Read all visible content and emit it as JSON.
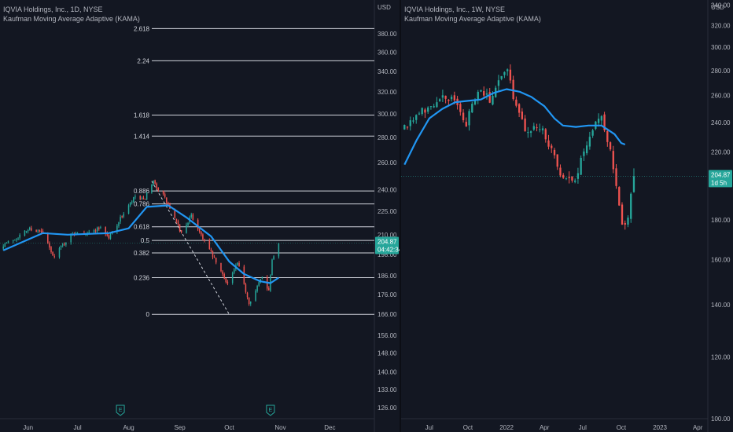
{
  "chart_data": [
    {
      "type": "candlestick",
      "legend": {
        "symbol": "IQVIA Holdings, Inc., 1D, NYSE",
        "indicator": "Kaufman Moving Average Adaptive (KAMA)"
      },
      "currency": "USD",
      "y_scale": "log",
      "ylim": [
        122,
        420
      ],
      "y_ticks": [
        "380.00",
        "360.00",
        "340.00",
        "320.00",
        "300.00",
        "280.00",
        "260.00",
        "240.00",
        "225.00",
        "210.00",
        "198.00",
        "186.00",
        "176.00",
        "166.00",
        "156.00",
        "148.00",
        "140.00",
        "133.00",
        "126.00"
      ],
      "x_ticks": [
        "Jun",
        "Jul",
        "Aug",
        "Sep",
        "Oct",
        "Nov",
        "Dec"
      ],
      "price_label": {
        "price": "204.87",
        "countdown": "04:42:34"
      },
      "fib_levels": [
        {
          "label": "0",
          "value": 166.0
        },
        {
          "label": "0.236",
          "value": 185.0
        },
        {
          "label": "0.382",
          "value": 199.0
        },
        {
          "label": "0.5",
          "value": 206.5
        },
        {
          "label": "0.618",
          "value": 215.0
        },
        {
          "label": "0.786",
          "value": 230.0
        },
        {
          "label": "0.886",
          "value": 239.0
        },
        {
          "label": "1.414",
          "value": 281.0
        },
        {
          "label": "1.618",
          "value": 299.0
        },
        {
          "label": "2.24",
          "value": 351.0
        },
        {
          "label": "2.618",
          "value": 386.0
        }
      ],
      "trendline": [
        {
          "date": "2022-08-15",
          "price": 246.0
        },
        {
          "date": "2022-10-01",
          "price": 166.0
        }
      ],
      "earnings": [
        {
          "date": "2022-07-27",
          "label": "E"
        },
        {
          "date": "2022-10-26",
          "label": "E"
        }
      ],
      "kama": [
        {
          "date": "2022-05-17",
          "price": 200.5
        },
        {
          "date": "2022-06-10",
          "price": 211.0
        },
        {
          "date": "2022-06-25",
          "price": 210.0
        },
        {
          "date": "2022-07-20",
          "price": 211.0
        },
        {
          "date": "2022-08-01",
          "price": 214.0
        },
        {
          "date": "2022-08-12",
          "price": 228.0
        },
        {
          "date": "2022-08-25",
          "price": 229.0
        },
        {
          "date": "2022-09-05",
          "price": 221.0
        },
        {
          "date": "2022-09-20",
          "price": 209.0
        },
        {
          "date": "2022-10-01",
          "price": 194.0
        },
        {
          "date": "2022-10-10",
          "price": 187.0
        },
        {
          "date": "2022-10-20",
          "price": 183.0
        },
        {
          "date": "2022-10-26",
          "price": 182.0
        },
        {
          "date": "2022-10-31",
          "price": 185.0
        }
      ],
      "anchors": [
        {
          "date": "2022-05-17",
          "close": 204
        },
        {
          "date": "2022-05-25",
          "close": 208
        },
        {
          "date": "2022-06-02",
          "close": 214
        },
        {
          "date": "2022-06-10",
          "close": 211
        },
        {
          "date": "2022-06-16",
          "close": 197
        },
        {
          "date": "2022-06-24",
          "close": 206
        },
        {
          "date": "2022-06-30",
          "close": 212
        },
        {
          "date": "2022-07-08",
          "close": 211
        },
        {
          "date": "2022-07-15",
          "close": 215
        },
        {
          "date": "2022-07-20",
          "close": 208
        },
        {
          "date": "2022-07-28",
          "close": 222
        },
        {
          "date": "2022-08-05",
          "close": 235
        },
        {
          "date": "2022-08-10",
          "close": 232
        },
        {
          "date": "2022-08-16",
          "close": 245
        },
        {
          "date": "2022-08-22",
          "close": 236
        },
        {
          "date": "2022-08-29",
          "close": 220
        },
        {
          "date": "2022-09-02",
          "close": 211
        },
        {
          "date": "2022-09-08",
          "close": 222
        },
        {
          "date": "2022-09-13",
          "close": 212
        },
        {
          "date": "2022-09-20",
          "close": 199
        },
        {
          "date": "2022-09-26",
          "close": 188
        },
        {
          "date": "2022-09-30",
          "close": 182
        },
        {
          "date": "2022-10-06",
          "close": 193
        },
        {
          "date": "2022-10-13",
          "close": 172
        },
        {
          "date": "2022-10-17",
          "close": 178
        },
        {
          "date": "2022-10-21",
          "close": 186
        },
        {
          "date": "2022-10-25",
          "close": 178
        },
        {
          "date": "2022-10-27",
          "close": 196
        },
        {
          "date": "2022-10-31",
          "close": 204.87
        }
      ]
    },
    {
      "type": "candlestick",
      "legend": {
        "symbol": "IQVIA Holdings, Inc., 1W, NYSE",
        "indicator": "Kaufman Moving Average Adaptive (KAMA)"
      },
      "currency": "USD",
      "y_scale": "log",
      "ylim": [
        100,
        345
      ],
      "y_ticks": [
        "340.00",
        "320.00",
        "300.00",
        "280.00",
        "260.00",
        "240.00",
        "220.00",
        "200.00",
        "180.00",
        "160.00",
        "140.00",
        "120.00",
        "100.00"
      ],
      "x_ticks": [
        "Jul",
        "Oct",
        "2022",
        "Apr",
        "Jul",
        "Oct",
        "2023",
        "Apr"
      ],
      "price_label": {
        "price": "204.87",
        "countdown": "1d 5h"
      },
      "kama": [
        {
          "date": "2021-05-03",
          "price": 212
        },
        {
          "date": "2021-06-01",
          "price": 228
        },
        {
          "date": "2021-07-01",
          "price": 243
        },
        {
          "date": "2021-08-01",
          "price": 250
        },
        {
          "date": "2021-09-01",
          "price": 255
        },
        {
          "date": "2021-10-01",
          "price": 256
        },
        {
          "date": "2021-11-01",
          "price": 257
        },
        {
          "date": "2021-12-01",
          "price": 262
        },
        {
          "date": "2022-01-01",
          "price": 265
        },
        {
          "date": "2022-02-01",
          "price": 263
        },
        {
          "date": "2022-03-01",
          "price": 259
        },
        {
          "date": "2022-04-01",
          "price": 252
        },
        {
          "date": "2022-04-25",
          "price": 243
        },
        {
          "date": "2022-05-15",
          "price": 238
        },
        {
          "date": "2022-06-15",
          "price": 237
        },
        {
          "date": "2022-07-15",
          "price": 238
        },
        {
          "date": "2022-08-15",
          "price": 238
        },
        {
          "date": "2022-09-15",
          "price": 232
        },
        {
          "date": "2022-10-01",
          "price": 226
        },
        {
          "date": "2022-10-10",
          "price": 225
        }
      ],
      "anchors": [
        {
          "date": "2021-05-03",
          "close": 238
        },
        {
          "date": "2021-05-24",
          "close": 243
        },
        {
          "date": "2021-06-14",
          "close": 249
        },
        {
          "date": "2021-07-12",
          "close": 255
        },
        {
          "date": "2021-08-02",
          "close": 262
        },
        {
          "date": "2021-08-30",
          "close": 255
        },
        {
          "date": "2021-09-27",
          "close": 240
        },
        {
          "date": "2021-10-25",
          "close": 262
        },
        {
          "date": "2021-11-22",
          "close": 258
        },
        {
          "date": "2021-12-13",
          "close": 272
        },
        {
          "date": "2022-01-03",
          "close": 280
        },
        {
          "date": "2022-01-24",
          "close": 250
        },
        {
          "date": "2022-02-21",
          "close": 232
        },
        {
          "date": "2022-03-21",
          "close": 238
        },
        {
          "date": "2022-04-18",
          "close": 220
        },
        {
          "date": "2022-05-09",
          "close": 208
        },
        {
          "date": "2022-06-06",
          "close": 200
        },
        {
          "date": "2022-07-04",
          "close": 218
        },
        {
          "date": "2022-08-01",
          "close": 240
        },
        {
          "date": "2022-08-15",
          "close": 245
        },
        {
          "date": "2022-09-12",
          "close": 210
        },
        {
          "date": "2022-10-03",
          "close": 178
        },
        {
          "date": "2022-10-17",
          "close": 182
        },
        {
          "date": "2022-10-31",
          "close": 204.87
        }
      ]
    }
  ]
}
